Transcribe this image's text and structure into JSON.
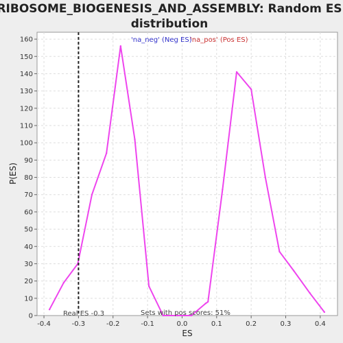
{
  "chart_data": {
    "type": "line",
    "title": "RIBOSOME_BIOGENESIS_AND_ASSEMBLY: Random ES distribution",
    "xlabel": "ES",
    "ylabel": "P(ES)",
    "xlim": [
      -0.42,
      0.45
    ],
    "ylim": [
      0,
      164
    ],
    "xticks": [
      -0.4,
      -0.3,
      -0.2,
      -0.1,
      0.0,
      0.1,
      0.2,
      0.3,
      0.4
    ],
    "xtick_labels": [
      "-0.4",
      "-0.3",
      "-0.2",
      "-0.1",
      "0.0",
      "0.1",
      "0.2",
      "0.3",
      "0.4"
    ],
    "yticks": [
      0,
      10,
      20,
      30,
      40,
      50,
      60,
      70,
      80,
      90,
      100,
      110,
      120,
      130,
      140,
      150,
      160
    ],
    "grid": true,
    "legend": [
      {
        "label": "'na_neg' (Neg ES)",
        "color": "#3333cc"
      },
      {
        "label": "'na_pos' (Pos ES)",
        "color": "#cc3333"
      }
    ],
    "series": [
      {
        "color": "#ee44ee",
        "x": [
          -0.384,
          -0.343,
          -0.302,
          -0.261,
          -0.219,
          -0.178,
          -0.137,
          -0.096,
          -0.055,
          -0.014,
          0.027,
          0.068,
          0.075,
          0.117,
          0.158,
          0.2,
          0.241,
          0.282,
          0.323,
          0.37,
          0.412
        ],
        "y": [
          3.5,
          19,
          30,
          70,
          94,
          156,
          102,
          17,
          0,
          0,
          0,
          7,
          8,
          73,
          141,
          131,
          80,
          37,
          26,
          13,
          2
        ]
      }
    ],
    "annotations": {
      "real_es": {
        "x": -0.3,
        "label": "Real ES -0.3"
      },
      "pos_scores": {
        "label": "Sets with pos scores: 51%"
      }
    }
  }
}
